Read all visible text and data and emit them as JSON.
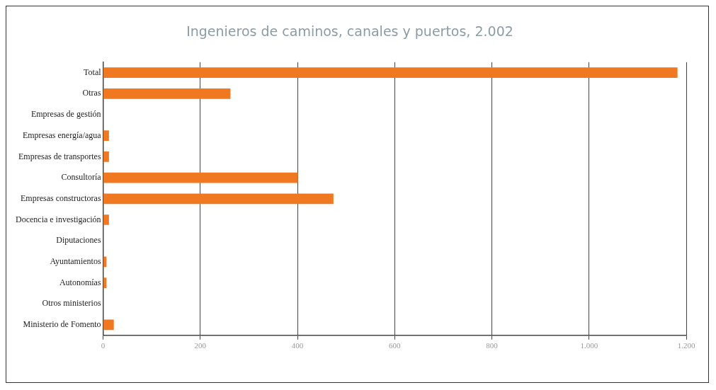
{
  "chart_data": {
    "type": "bar",
    "orientation": "horizontal",
    "title": "Ingenieros de caminos, canales y puertos, 2.002",
    "categories": [
      "Total",
      "Otras",
      "Empresas de gestión",
      "Empresas energía/agua",
      "Empresas de transportes",
      "Consultoría",
      "Empresas constructoras",
      "Docencia e investigación",
      "Diputaciones",
      "Ayuntamientos",
      "Autonomías",
      "Otros ministerios",
      "Ministerio de Fomento"
    ],
    "values": [
      1182,
      262,
      0,
      12,
      12,
      401,
      474,
      12,
      0,
      7,
      7,
      0,
      22
    ],
    "color": "#f07820",
    "xlim": [
      0,
      1200
    ],
    "xticks": [
      0,
      200,
      400,
      600,
      800,
      {
        "value": 1000,
        "label": "1.000"
      },
      {
        "value": 1200,
        "label": "1.200"
      }
    ],
    "grid": "x"
  }
}
